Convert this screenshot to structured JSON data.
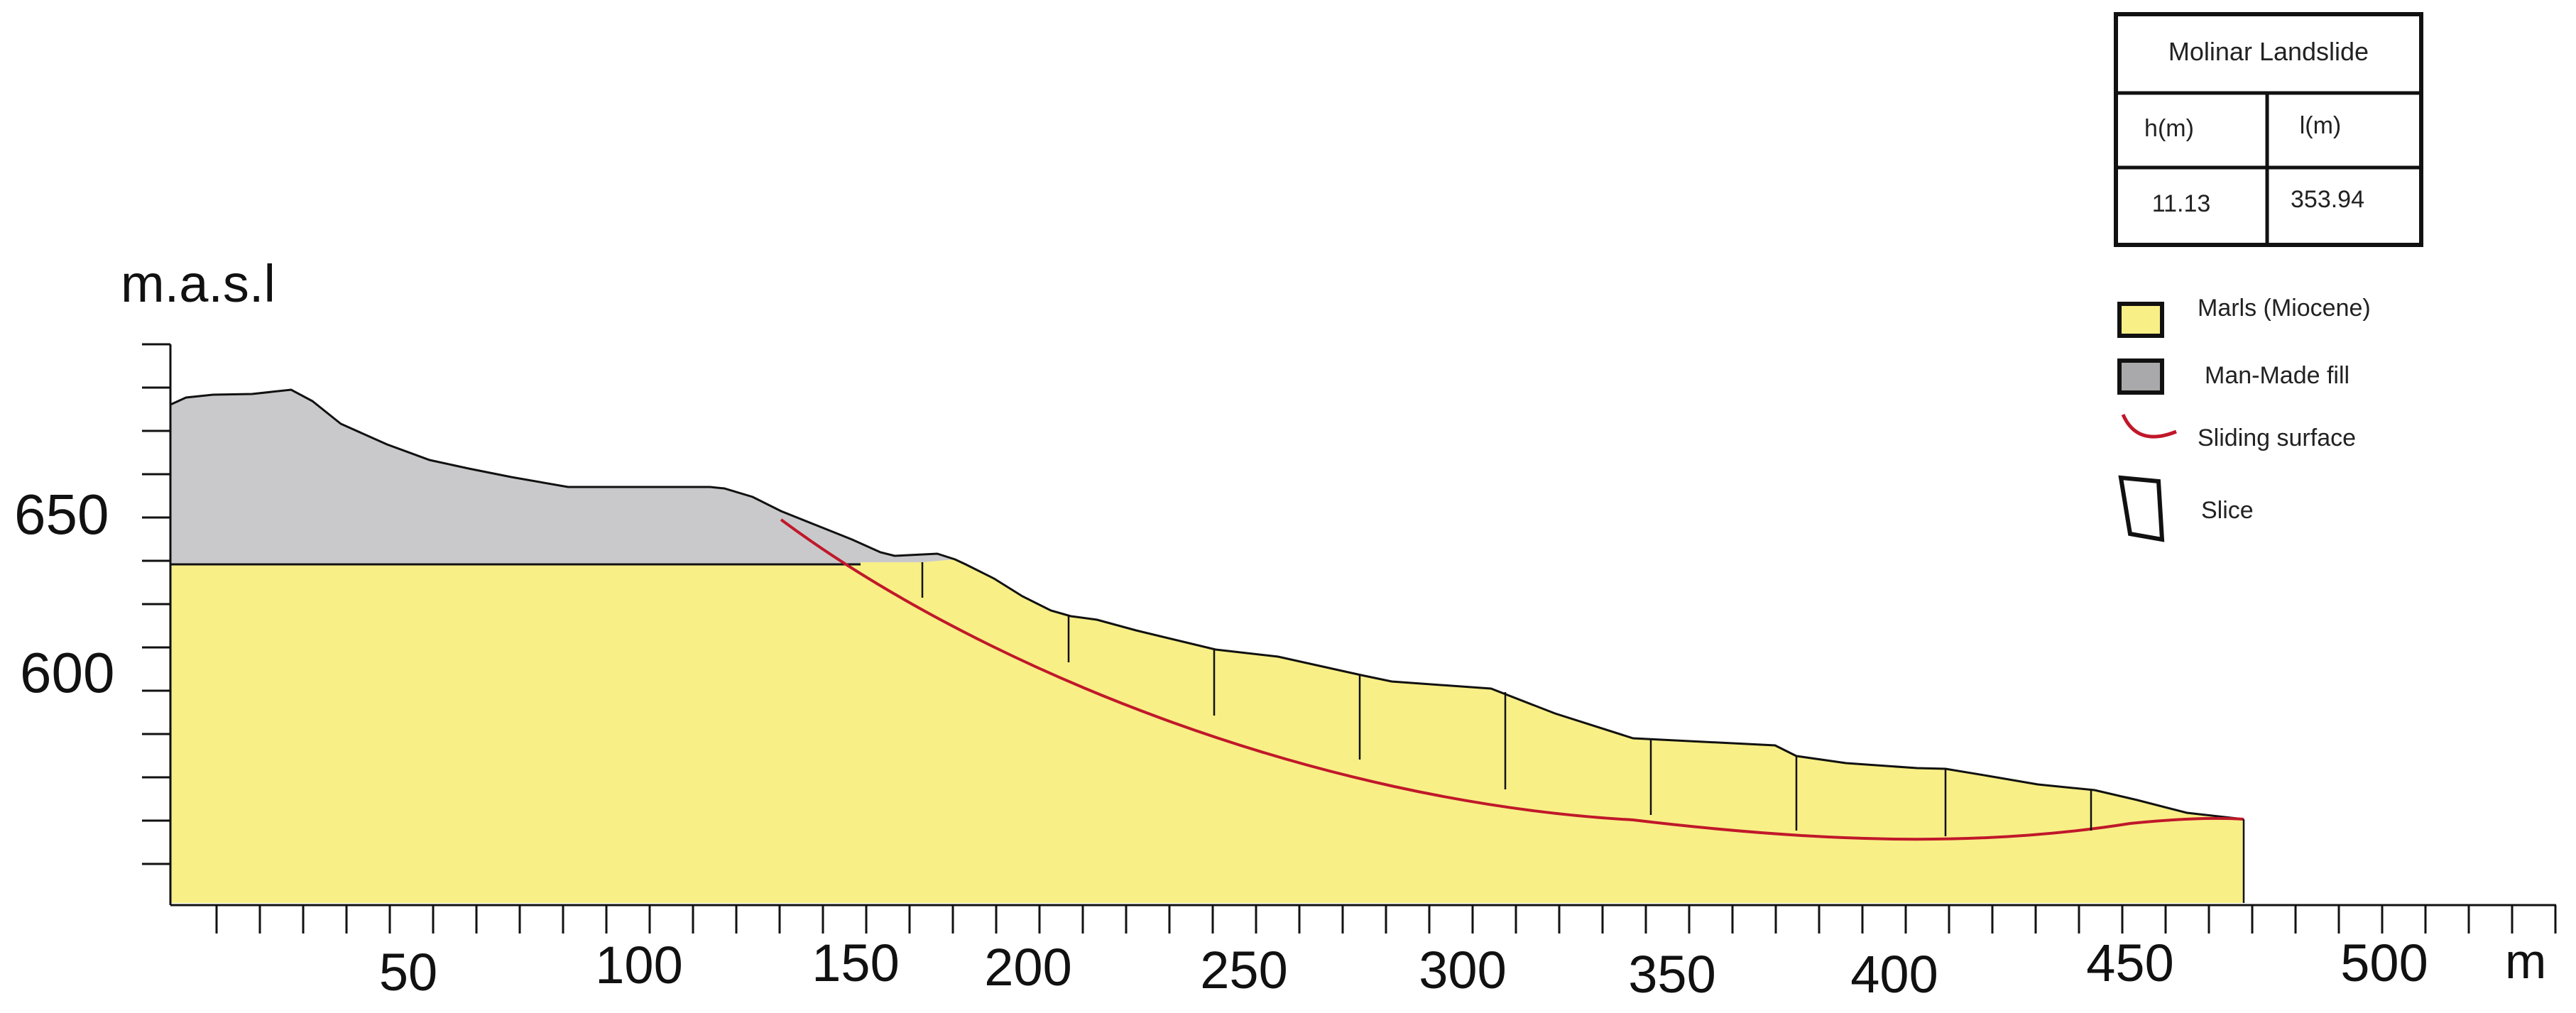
{
  "axes": {
    "y_unit": "m.a.s.l",
    "x_unit": "m",
    "x_ticks": [
      "50",
      "100",
      "150",
      "200",
      "250",
      "300",
      "350",
      "400",
      "450",
      "500"
    ],
    "y_ticks": [
      "650",
      "600"
    ]
  },
  "table": {
    "title": "Molinar Landslide",
    "headers": [
      "h(m)",
      "l(m)"
    ],
    "values": [
      "11.13",
      "353.94"
    ]
  },
  "legend": [
    {
      "label": "Marls (Miocene)",
      "color": "#f8ef86",
      "icon": "swatch"
    },
    {
      "label": "Man-Made fill",
      "color": "#a9a9ac",
      "icon": "swatch"
    },
    {
      "label": "Sliding surface",
      "color": "#c0182a",
      "icon": "arc"
    },
    {
      "label": "Slice",
      "color": "#111111",
      "icon": "quad"
    }
  ],
  "colors": {
    "marls": "#f8ef86",
    "fill": "#c9c9cc",
    "sliding_surface": "#c0182a",
    "outline": "#111111"
  }
}
